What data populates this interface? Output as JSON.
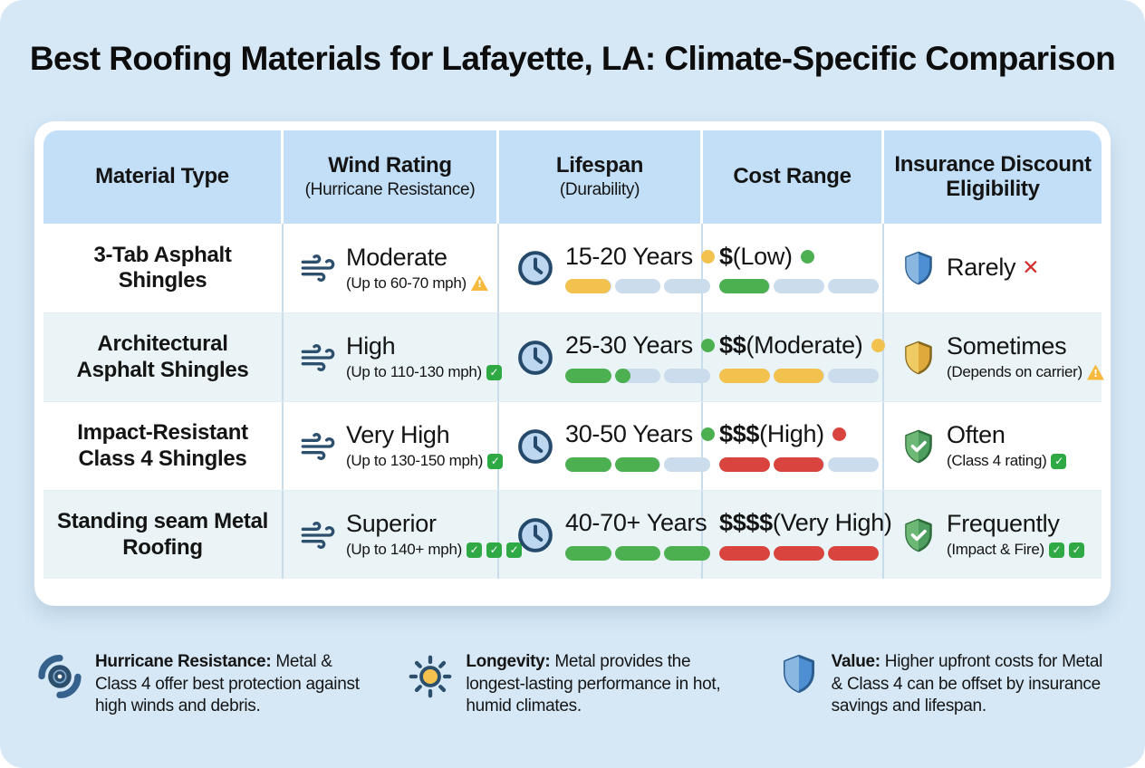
{
  "title": "Best Roofing Materials for Lafayette, LA: Climate-Specific Comparison",
  "colors": {
    "background": "#D6E8F6",
    "card": "#FFFFFF",
    "header_bg": "#C3DFF7",
    "alt_row_bg": "#EAF4F6",
    "track": "#CBDCEC",
    "green": "#4CAF50",
    "yellow": "#F2C14E",
    "red": "#D9453E",
    "icon_navy": "#2D4F6E"
  },
  "chart_data": {
    "type": "table",
    "title": "Best Roofing Materials for Lafayette, LA: Climate-Specific Comparison",
    "columns": [
      {
        "title": "Material Type",
        "subtitle": ""
      },
      {
        "title": "Wind Rating",
        "subtitle": "(Hurricane Resistance)"
      },
      {
        "title": "Lifespan",
        "subtitle": "(Durability)"
      },
      {
        "title": "Cost Range",
        "subtitle": ""
      },
      {
        "title": "Insurance Discount Eligibility",
        "subtitle": ""
      }
    ],
    "rows": [
      {
        "material": "3-Tab Asphalt Shingles",
        "wind": {
          "rating": "Moderate",
          "detail": "(Up to 60-70 mph)",
          "detail_badges": [
            "warning"
          ]
        },
        "lifespan": {
          "value": "15-20 Years",
          "dot": "#F2C14E",
          "bar": {
            "percent": 33,
            "color": "#F2C14E"
          }
        },
        "cost": {
          "symbol": "$",
          "label": " (Low)",
          "dot": "#4CAF50",
          "bar": {
            "percent": 33,
            "color": "#4CAF50"
          }
        },
        "insurance": {
          "shield": "blue",
          "value": "Rarely",
          "value_badges": [
            "cross"
          ],
          "detail": "",
          "detail_badges": []
        }
      },
      {
        "material": "Architectural Asphalt Shingles",
        "wind": {
          "rating": "High",
          "detail": "(Up to 110-130 mph)",
          "detail_badges": [
            "check"
          ]
        },
        "lifespan": {
          "value": "25-30 Years",
          "dot": "#4CAF50",
          "bar": {
            "percent": 45,
            "color": "#4CAF50"
          }
        },
        "cost": {
          "symbol": "$$",
          "label": " (Moderate)",
          "dot": "#F2C14E",
          "bar": {
            "percent": 66,
            "color": "#F2C14E"
          }
        },
        "insurance": {
          "shield": "gold",
          "value": "Sometimes",
          "value_badges": [],
          "detail": "(Depends on carrier)",
          "detail_badges": [
            "warning"
          ]
        }
      },
      {
        "material": "Impact-Resistant Class 4 Shingles",
        "wind": {
          "rating": "Very High",
          "detail": "(Up to 130-150 mph)",
          "detail_badges": [
            "check"
          ]
        },
        "lifespan": {
          "value": "30-50 Years",
          "dot": "#4CAF50",
          "bar": {
            "percent": 66,
            "color": "#4CAF50"
          }
        },
        "cost": {
          "symbol": "$$$",
          "label": " (High)",
          "dot": "#D9453E",
          "bar": {
            "percent": 66,
            "color": "#D9453E"
          }
        },
        "insurance": {
          "shield": "green",
          "value": "Often",
          "value_badges": [],
          "detail": "(Class 4 rating)",
          "detail_badges": [
            "check"
          ]
        }
      },
      {
        "material": "Standing seam Metal Roofing",
        "wind": {
          "rating": "Superior",
          "detail": "(Up to 140+ mph)",
          "detail_badges": [
            "check",
            "check",
            "check"
          ]
        },
        "lifespan": {
          "value": "40-70+ Years",
          "dot": "",
          "bar": {
            "percent": 100,
            "color": "#4CAF50"
          }
        },
        "cost": {
          "symbol": "$$$$",
          "label": " (Very High)",
          "dot": "",
          "bar": {
            "percent": 100,
            "color": "#D9453E"
          }
        },
        "insurance": {
          "shield": "green",
          "value": "Frequently",
          "value_badges": [],
          "detail": "(Impact & Fire)",
          "detail_badges": [
            "check",
            "check"
          ]
        }
      }
    ]
  },
  "notes": [
    {
      "icon": "hurricane-icon",
      "label": "Hurricane Resistance:",
      "text": " Metal & Class 4 offer best protection against high winds and debris."
    },
    {
      "icon": "sun-icon",
      "label": "Longevity:",
      "text": " Metal provides the longest-lasting performance in hot, humid climates."
    },
    {
      "icon": "shield-icon",
      "label": "Value:",
      "text": " Higher upfront costs for Metal & Class 4 can be offset by insurance savings and lifespan."
    }
  ]
}
